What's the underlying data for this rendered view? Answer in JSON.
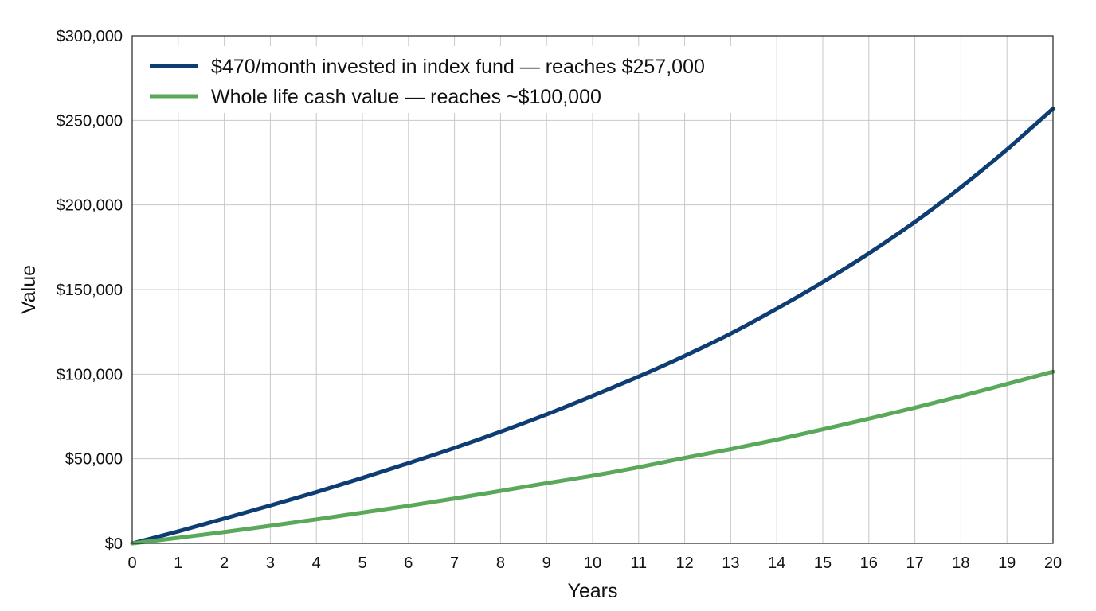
{
  "chart_data": {
    "type": "line",
    "xlabel": "Years",
    "ylabel": "Value",
    "xlim": [
      0,
      20
    ],
    "ylim": [
      0,
      300000
    ],
    "x_ticks": [
      "0",
      "1",
      "2",
      "3",
      "4",
      "5",
      "6",
      "7",
      "8",
      "9",
      "10",
      "11",
      "12",
      "13",
      "14",
      "15",
      "16",
      "17",
      "18",
      "19",
      "20"
    ],
    "y_ticks": [
      "$0",
      "$50,000",
      "$100,000",
      "$150,000",
      "$200,000",
      "$250,000",
      "$300,000"
    ],
    "y_tick_values": [
      0,
      50000,
      100000,
      150000,
      200000,
      250000,
      300000
    ],
    "grid": true,
    "legend_position": "top-left",
    "x": [
      0,
      1,
      2,
      3,
      4,
      5,
      6,
      7,
      8,
      9,
      10,
      11,
      12,
      13,
      14,
      15,
      16,
      17,
      18,
      19,
      20
    ],
    "series": [
      {
        "name": "$470/month invested in index fund — reaches $257,000",
        "color": "#0d3d73",
        "values": [
          0,
          7100,
          14700,
          22400,
          30300,
          38700,
          47400,
          56400,
          66000,
          76200,
          87200,
          98600,
          110800,
          124000,
          138700,
          154400,
          171400,
          190000,
          210500,
          232800,
          257000
        ]
      },
      {
        "name": "Whole life cash value — reaches ~$100,000",
        "color": "#5aa85a",
        "values": [
          0,
          3300,
          6700,
          10400,
          14200,
          18200,
          22200,
          26500,
          31000,
          35600,
          40000,
          45000,
          50500,
          55700,
          61300,
          67400,
          73700,
          80200,
          87000,
          94200,
          101500
        ]
      }
    ]
  }
}
